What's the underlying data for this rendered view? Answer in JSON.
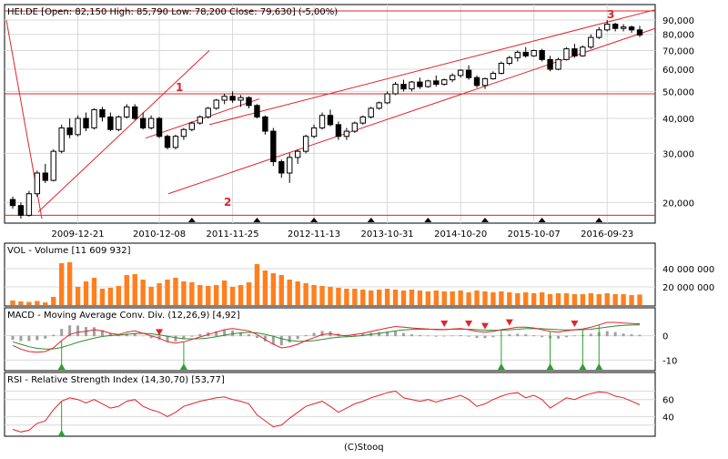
{
  "source": "(C)Stooq",
  "colors": {
    "up": "#ffffff",
    "down": "#000000",
    "candle_stroke": "#000000",
    "trend": "#e0242b",
    "volume": "#ff7f1e",
    "macd_line": "#e0242b",
    "signal_line": "#2e8b2e",
    "histogram": "#a0a0a0",
    "rsi": "#e0242b",
    "signal_up": "#2ea02e",
    "signal_down": "#e0242b"
  },
  "price_panel": {
    "title": "HEI.DE [Open: 82,150  High: 85,790  Low: 78,200  Close: 79,630] (-5,00%)",
    "y_ticks": [
      "90,000",
      "80,000",
      "70,000",
      "60,000",
      "50,000",
      "40,000",
      "30,000",
      "20,000"
    ],
    "x_ticks": [
      "2009-12-21",
      "2010-12-08",
      "2011-11-25",
      "2012-11-13",
      "2013-10-31",
      "2014-10-20",
      "2015-10-07",
      "2016-09-23"
    ],
    "annotations": [
      "1",
      "2",
      "3"
    ]
  },
  "volume_panel": {
    "title": "VOL - Volume [11 609 932]",
    "y_ticks": [
      "40 000 000",
      "20 000 000"
    ]
  },
  "macd_panel": {
    "title": "MACD - Moving Average Conv. Div. (12,26,9) [4,92]",
    "y_ticks": [
      "0",
      "-10"
    ]
  },
  "rsi_panel": {
    "title": "RSI - Relative Strength Index (14,30,70) [53,77]",
    "y_ticks": [
      "60",
      "40"
    ]
  },
  "chart_data": {
    "type": "candlestick",
    "scale": "log",
    "ylim": [
      17,
      100
    ],
    "x_range": [
      "2009-01",
      "2017-06"
    ],
    "candles": [
      [
        20.5,
        21.0,
        19.0,
        19.5
      ],
      [
        19.5,
        20.0,
        17.5,
        18.0
      ],
      [
        18.0,
        22.0,
        17.8,
        21.5
      ],
      [
        21.5,
        26.0,
        21.0,
        25.5
      ],
      [
        25.5,
        27.5,
        23.5,
        24.0
      ],
      [
        24.0,
        31.0,
        23.8,
        30.5
      ],
      [
        30.5,
        38.0,
        30.0,
        37.0
      ],
      [
        37.0,
        40.0,
        34.0,
        35.0
      ],
      [
        35.0,
        41.0,
        34.5,
        40.0
      ],
      [
        40.0,
        42.0,
        36.0,
        37.0
      ],
      [
        37.0,
        43.5,
        36.5,
        43.0
      ],
      [
        43.0,
        44.0,
        39.0,
        40.5
      ],
      [
        40.5,
        42.0,
        36.0,
        36.5
      ],
      [
        36.5,
        41.0,
        36.0,
        40.5
      ],
      [
        40.5,
        45.0,
        40.0,
        44.0
      ],
      [
        44.0,
        45.0,
        39.5,
        40.0
      ],
      [
        40.0,
        42.0,
        36.5,
        37.0
      ],
      [
        37.0,
        41.0,
        36.5,
        40.0
      ],
      [
        40.0,
        40.5,
        34.0,
        34.5
      ],
      [
        34.5,
        35.0,
        31.0,
        31.5
      ],
      [
        31.5,
        35.0,
        31.0,
        34.5
      ],
      [
        34.5,
        37.0,
        33.5,
        36.5
      ],
      [
        36.5,
        39.0,
        36.0,
        38.5
      ],
      [
        38.5,
        41.0,
        38.0,
        40.5
      ],
      [
        40.5,
        44.0,
        40.0,
        43.5
      ],
      [
        43.5,
        47.0,
        43.0,
        46.5
      ],
      [
        46.5,
        49.0,
        45.0,
        48.0
      ],
      [
        48.0,
        50.0,
        45.5,
        46.5
      ],
      [
        46.5,
        48.5,
        44.0,
        47.5
      ],
      [
        47.5,
        48.0,
        43.5,
        44.5
      ],
      [
        44.5,
        45.0,
        40.0,
        40.5
      ],
      [
        40.5,
        41.0,
        35.0,
        36.0
      ],
      [
        36.0,
        37.0,
        27.0,
        28.0
      ],
      [
        28.0,
        28.5,
        24.5,
        25.5
      ],
      [
        25.5,
        30.0,
        23.5,
        29.0
      ],
      [
        29.0,
        31.0,
        27.5,
        30.5
      ],
      [
        30.5,
        35.0,
        30.0,
        34.5
      ],
      [
        34.5,
        38.0,
        34.0,
        37.0
      ],
      [
        37.0,
        42.0,
        36.5,
        41.0
      ],
      [
        41.0,
        43.0,
        37.5,
        38.0
      ],
      [
        38.0,
        39.0,
        33.5,
        34.5
      ],
      [
        34.5,
        37.0,
        33.5,
        36.0
      ],
      [
        36.0,
        39.0,
        35.5,
        38.5
      ],
      [
        38.5,
        41.0,
        38.0,
        40.5
      ],
      [
        40.5,
        44.0,
        40.0,
        43.5
      ],
      [
        43.5,
        46.0,
        43.0,
        45.5
      ],
      [
        45.5,
        50.0,
        45.0,
        49.0
      ],
      [
        49.0,
        54.0,
        48.5,
        53.0
      ],
      [
        53.0,
        55.0,
        50.0,
        51.0
      ],
      [
        51.0,
        54.5,
        50.0,
        54.0
      ],
      [
        54.0,
        56.0,
        51.0,
        52.0
      ],
      [
        52.0,
        55.0,
        51.5,
        54.5
      ],
      [
        54.5,
        57.0,
        52.0,
        53.0
      ],
      [
        53.0,
        55.5,
        52.5,
        55.0
      ],
      [
        55.0,
        58.0,
        54.0,
        57.0
      ],
      [
        57.0,
        60.0,
        56.0,
        59.5
      ],
      [
        59.5,
        62.0,
        55.0,
        56.0
      ],
      [
        56.0,
        57.0,
        51.5,
        52.5
      ],
      [
        52.5,
        56.0,
        51.0,
        55.5
      ],
      [
        55.5,
        59.0,
        55.0,
        58.0
      ],
      [
        58.0,
        64.0,
        57.5,
        63.0
      ],
      [
        63.0,
        67.0,
        62.0,
        66.0
      ],
      [
        66.0,
        70.0,
        64.0,
        69.0
      ],
      [
        69.0,
        72.0,
        66.0,
        67.0
      ],
      [
        67.0,
        70.5,
        66.5,
        70.0
      ],
      [
        70.0,
        71.0,
        64.0,
        65.0
      ],
      [
        65.0,
        67.0,
        59.0,
        60.0
      ],
      [
        60.0,
        66.0,
        59.5,
        65.0
      ],
      [
        65.0,
        72.0,
        64.5,
        71.0
      ],
      [
        71.0,
        74.0,
        66.0,
        67.0
      ],
      [
        67.0,
        73.0,
        66.5,
        72.0
      ],
      [
        72.0,
        80.0,
        71.0,
        78.0
      ],
      [
        78.0,
        85.0,
        77.0,
        83.0
      ],
      [
        83.0,
        90.0,
        82.0,
        87.0
      ],
      [
        87.0,
        88.0,
        82.0,
        84.0
      ],
      [
        84.0,
        87.0,
        82.0,
        85.0
      ],
      [
        85.0,
        86.0,
        81.0,
        83.0
      ],
      [
        83.0,
        85.8,
        78.2,
        79.6
      ]
    ],
    "volume": [
      5.0,
      4.0,
      3.5,
      4.5,
      3.0,
      9.0,
      46.0,
      47.0,
      20.0,
      26.0,
      30.0,
      18.0,
      19.0,
      21.0,
      33.0,
      34.0,
      28.0,
      20.0,
      24.0,
      28.0,
      30.0,
      26.0,
      25.0,
      22.0,
      21.0,
      22.0,
      27.0,
      20.0,
      22.0,
      25.0,
      45.0,
      38.0,
      35.0,
      33.0,
      28.0,
      26.0,
      24.0,
      22.0,
      21.0,
      20.0,
      19.0,
      18.0,
      18.0,
      17.0,
      16.0,
      17.0,
      18.0,
      17.0,
      16.0,
      17.0,
      16.0,
      15.0,
      16.0,
      15.0,
      15.0,
      16.0,
      14.0,
      16.0,
      15.0,
      14.0,
      15.0,
      14.0,
      13.0,
      14.0,
      13.0,
      14.0,
      12.0,
      13.0,
      13.0,
      12.0,
      12.0,
      13.0,
      12.0,
      13.0,
      12.0,
      12.0,
      11.0,
      11.6
    ],
    "macd": [
      -4.0,
      -5.5,
      -6.5,
      -6.8,
      -6.5,
      -5.0,
      -2.0,
      0.5,
      1.5,
      1.8,
      2.5,
      2.0,
      1.0,
      0.5,
      1.5,
      2.0,
      1.0,
      0.0,
      -1.0,
      -2.5,
      -3.0,
      -2.5,
      -1.5,
      -0.5,
      0.5,
      1.5,
      2.5,
      3.0,
      2.5,
      2.0,
      0.5,
      -1.5,
      -3.5,
      -5.0,
      -4.5,
      -3.5,
      -2.0,
      -0.8,
      0.5,
      0.8,
      0.3,
      0.0,
      0.5,
      1.0,
      1.8,
      2.5,
      3.2,
      3.8,
      3.5,
      3.2,
      3.0,
      2.8,
      2.5,
      2.5,
      2.8,
      3.0,
      2.5,
      1.8,
      1.5,
      1.8,
      2.5,
      3.0,
      3.5,
      3.5,
      3.2,
      2.5,
      1.8,
      1.5,
      2.0,
      2.5,
      2.8,
      3.5,
      4.5,
      5.5,
      5.5,
      5.2,
      5.0,
      4.9
    ],
    "macd_signal": [
      -2.5,
      -3.5,
      -4.5,
      -5.2,
      -5.5,
      -5.4,
      -4.8,
      -3.8,
      -2.7,
      -1.8,
      -1.0,
      -0.3,
      0.1,
      0.3,
      0.6,
      0.9,
      1.0,
      0.8,
      0.4,
      -0.2,
      -0.8,
      -1.2,
      -1.3,
      -1.2,
      -0.9,
      -0.4,
      0.2,
      0.8,
      1.2,
      1.4,
      1.2,
      0.6,
      -0.2,
      -1.2,
      -1.9,
      -2.3,
      -2.3,
      -2.0,
      -1.5,
      -1.0,
      -0.6,
      -0.4,
      -0.2,
      0.1,
      0.5,
      1.0,
      1.5,
      2.0,
      2.4,
      2.6,
      2.7,
      2.7,
      2.7,
      2.6,
      2.7,
      2.7,
      2.7,
      2.5,
      2.3,
      2.2,
      2.3,
      2.4,
      2.7,
      2.9,
      3.0,
      2.9,
      2.7,
      2.5,
      2.4,
      2.4,
      2.5,
      2.7,
      3.1,
      3.6,
      4.0,
      4.3,
      4.4,
      4.5
    ],
    "rsi": [
      25,
      22,
      24,
      32,
      35,
      48,
      58,
      62,
      60,
      56,
      60,
      55,
      50,
      52,
      58,
      60,
      52,
      48,
      45,
      40,
      45,
      52,
      55,
      58,
      60,
      62,
      63,
      60,
      58,
      55,
      42,
      35,
      28,
      30,
      38,
      45,
      52,
      55,
      58,
      52,
      45,
      50,
      55,
      58,
      62,
      65,
      68,
      70,
      62,
      60,
      58,
      60,
      57,
      60,
      62,
      65,
      60,
      52,
      55,
      60,
      64,
      67,
      68,
      62,
      65,
      60,
      50,
      56,
      62,
      60,
      64,
      67,
      69,
      68,
      64,
      62,
      58,
      53.8
    ],
    "buy_signals_idx": [
      6,
      21,
      60,
      66,
      70,
      72
    ],
    "sell_signals_idx": [
      18,
      53,
      56,
      58,
      61,
      69
    ],
    "dark_markers_idx": [
      22,
      30,
      37,
      44,
      51,
      58,
      65,
      72
    ]
  }
}
